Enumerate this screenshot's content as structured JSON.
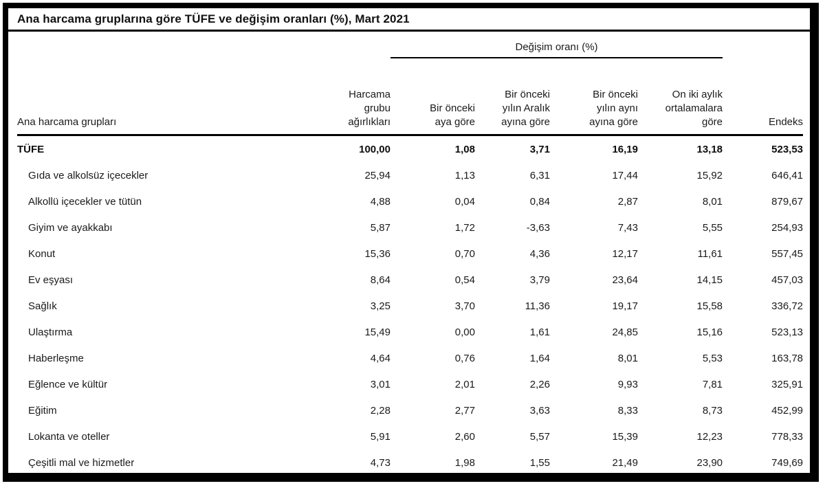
{
  "title": "Ana harcama gruplarına göre TÜFE ve değişim oranları (%), Mart 2021",
  "table": {
    "span_header": "Değişim oranı (%)",
    "columns": {
      "label": "Ana harcama grupları",
      "weights": "Harcama\ngrubu\nağırlıkları",
      "mom": "Bir önceki\naya göre",
      "vs_december": "Bir önceki\nyılın Aralık\nayına göre",
      "yoy": "Bir önceki\nyılın aynı\nayına göre",
      "twelve_month_avg": "On iki aylık\nortalamalara\ngöre",
      "index": "Endeks"
    },
    "rows": [
      {
        "label": "TÜFE",
        "bold": true,
        "indent": false,
        "values": [
          "100,00",
          "1,08",
          "3,71",
          "16,19",
          "13,18",
          "523,53"
        ]
      },
      {
        "label": "Gıda ve alkolsüz içecekler",
        "bold": false,
        "indent": true,
        "values": [
          "25,94",
          "1,13",
          "6,31",
          "17,44",
          "15,92",
          "646,41"
        ]
      },
      {
        "label": "Alkollü içecekler ve tütün",
        "bold": false,
        "indent": true,
        "values": [
          "4,88",
          "0,04",
          "0,84",
          "2,87",
          "8,01",
          "879,67"
        ]
      },
      {
        "label": "Giyim ve ayakkabı",
        "bold": false,
        "indent": true,
        "values": [
          "5,87",
          "1,72",
          "-3,63",
          "7,43",
          "5,55",
          "254,93"
        ]
      },
      {
        "label": "Konut",
        "bold": false,
        "indent": true,
        "values": [
          "15,36",
          "0,70",
          "4,36",
          "12,17",
          "11,61",
          "557,45"
        ]
      },
      {
        "label": "Ev eşyası",
        "bold": false,
        "indent": true,
        "values": [
          "8,64",
          "0,54",
          "3,79",
          "23,64",
          "14,15",
          "457,03"
        ]
      },
      {
        "label": "Sağlık",
        "bold": false,
        "indent": true,
        "values": [
          "3,25",
          "3,70",
          "11,36",
          "19,17",
          "15,58",
          "336,72"
        ]
      },
      {
        "label": "Ulaştırma",
        "bold": false,
        "indent": true,
        "values": [
          "15,49",
          "0,00",
          "1,61",
          "24,85",
          "15,16",
          "523,13"
        ]
      },
      {
        "label": "Haberleşme",
        "bold": false,
        "indent": true,
        "values": [
          "4,64",
          "0,76",
          "1,64",
          "8,01",
          "5,53",
          "163,78"
        ]
      },
      {
        "label": "Eğlence ve kültür",
        "bold": false,
        "indent": true,
        "values": [
          "3,01",
          "2,01",
          "2,26",
          "9,93",
          "7,81",
          "325,91"
        ]
      },
      {
        "label": "Eğitim",
        "bold": false,
        "indent": true,
        "values": [
          "2,28",
          "2,77",
          "3,63",
          "8,33",
          "8,73",
          "452,99"
        ]
      },
      {
        "label": "Lokanta ve oteller",
        "bold": false,
        "indent": true,
        "values": [
          "5,91",
          "2,60",
          "5,57",
          "15,39",
          "12,23",
          "778,33"
        ]
      },
      {
        "label": "Çeşitli mal ve hizmetler",
        "bold": false,
        "indent": true,
        "values": [
          "4,73",
          "1,98",
          "1,55",
          "21,49",
          "23,90",
          "749,69"
        ]
      }
    ]
  }
}
